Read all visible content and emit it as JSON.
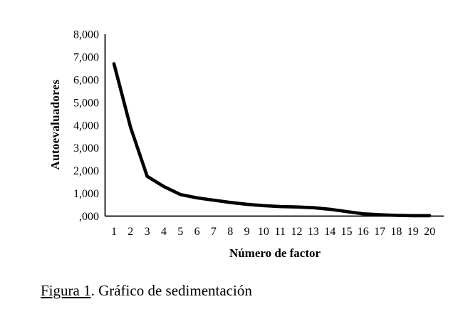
{
  "caption": {
    "label": "Figura 1",
    "text": ". Gráfico de sedimentación"
  },
  "chart_data": {
    "type": "line",
    "title": "",
    "xlabel": "Número de factor",
    "ylabel": "Autoevaluadores",
    "x": [
      1,
      2,
      3,
      4,
      5,
      6,
      7,
      8,
      9,
      10,
      11,
      12,
      13,
      14,
      15,
      16,
      17,
      18,
      19,
      20
    ],
    "values": [
      6.7,
      3.9,
      1.75,
      1.3,
      0.95,
      0.8,
      0.7,
      0.6,
      0.52,
      0.46,
      0.42,
      0.4,
      0.37,
      0.3,
      0.2,
      0.1,
      0.06,
      0.03,
      0.02,
      0.02
    ],
    "yticks": [
      0,
      1,
      2,
      3,
      4,
      5,
      6,
      7,
      8
    ],
    "ytick_labels": [
      ",000",
      "1,000",
      "2,000",
      "3,000",
      "4,000",
      "5,000",
      "6,000",
      "7,000",
      "8,000"
    ],
    "xlim": [
      1,
      20
    ],
    "ylim": [
      0,
      8
    ],
    "grid": false,
    "legend": "none",
    "line_color": "#000000",
    "axis_color": "#000000",
    "background_color": "#ffffff"
  }
}
